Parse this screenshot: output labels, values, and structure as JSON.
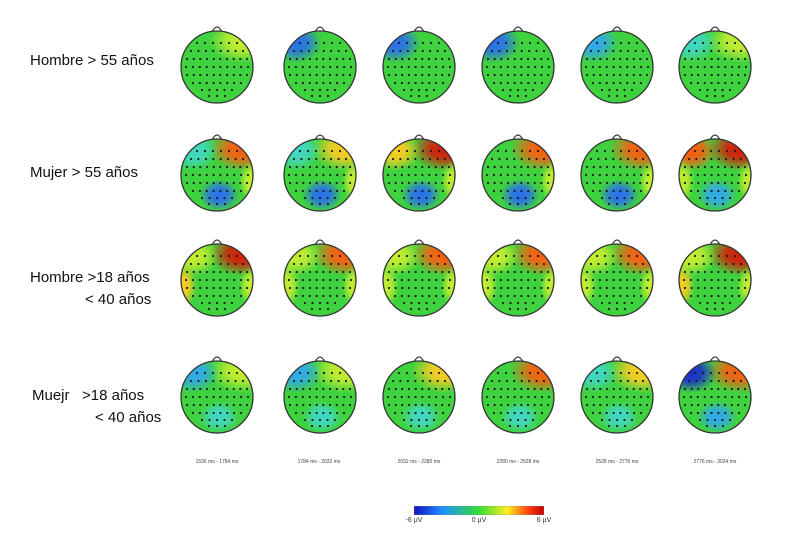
{
  "rows": [
    {
      "label": "Hombre > 55 años",
      "label2": ""
    },
    {
      "label": "Mujer > 55 años",
      "label2": ""
    },
    {
      "label": "Hombre >18 años",
      "label2": "< 40 años"
    },
    {
      "label": "Muejr   >18 años",
      "label2": "< 40 años"
    }
  ],
  "time_windows": [
    "1536 ms - 1784 ms",
    "1784 ms - 2032 ms",
    "2032 ms - 2280 ms",
    "2280 ms - 2528 ms",
    "2528 ms - 2776 ms",
    "2776 ms - 3024 ms"
  ],
  "colorbar": {
    "min_label": "-6 µV",
    "mid_label": "0 µV",
    "max_label": "6 µV",
    "colors": [
      "#1010c0",
      "#1e90ff",
      "#33dd33",
      "#ffee22",
      "#ff4010",
      "#c00000"
    ]
  },
  "maps": [
    [
      {
        "frontal_right": 0.15,
        "frontal_left": 0,
        "occipital": 0,
        "left": 0,
        "right": 0
      },
      {
        "frontal_right": 0,
        "frontal_left": -0.6,
        "occipital": 0,
        "left": 0,
        "right": 0
      },
      {
        "frontal_right": 0,
        "frontal_left": -0.8,
        "occipital": 0,
        "left": 0,
        "right": 0
      },
      {
        "frontal_right": 0,
        "frontal_left": -0.75,
        "occipital": 0,
        "left": 0,
        "right": 0
      },
      {
        "frontal_right": 0,
        "frontal_left": -0.5,
        "occipital": 0,
        "left": 0,
        "right": 0
      },
      {
        "frontal_right": 0.1,
        "frontal_left": -0.1,
        "occipital": 0,
        "left": 0,
        "right": 0
      }
    ],
    [
      {
        "frontal_right": 0.6,
        "frontal_left": -0.2,
        "occipital": -0.6,
        "left": 0,
        "right": 0.2
      },
      {
        "frontal_right": 0.4,
        "frontal_left": -0.3,
        "occipital": -0.8,
        "left": 0,
        "right": 0.1
      },
      {
        "frontal_right": 0.9,
        "frontal_left": 0.5,
        "occipital": -0.75,
        "left": 0,
        "right": 0.2
      },
      {
        "frontal_right": 0.6,
        "frontal_left": 0,
        "occipital": -0.7,
        "left": 0,
        "right": 0.2
      },
      {
        "frontal_right": 0.8,
        "frontal_left": 0,
        "occipital": -0.6,
        "left": 0,
        "right": 0.3
      },
      {
        "frontal_right": 0.95,
        "frontal_left": 0.6,
        "occipital": -0.55,
        "left": 0.2,
        "right": 0.3
      }
    ],
    [
      {
        "frontal_right": 0.85,
        "frontal_left": 0.2,
        "occipital": 0,
        "left": 0.45,
        "right": 0.2
      },
      {
        "frontal_right": 0.8,
        "frontal_left": 0.1,
        "occipital": 0,
        "left": 0.3,
        "right": 0.1
      },
      {
        "frontal_right": 0.8,
        "frontal_left": 0.1,
        "occipital": 0,
        "left": 0.35,
        "right": 0.1
      },
      {
        "frontal_right": 0.75,
        "frontal_left": 0.1,
        "occipital": 0,
        "left": 0.3,
        "right": 0.1
      },
      {
        "frontal_right": 0.8,
        "frontal_left": 0.1,
        "occipital": 0,
        "left": 0.35,
        "right": 0.1
      },
      {
        "frontal_right": 0.9,
        "frontal_left": 0.2,
        "occipital": 0,
        "left": 0.45,
        "right": 0.2
      }
    ],
    [
      {
        "frontal_right": 0.1,
        "frontal_left": -0.4,
        "occipital": -0.3,
        "left": 0,
        "right": 0
      },
      {
        "frontal_right": 0.3,
        "frontal_left": -0.45,
        "occipital": -0.3,
        "left": 0,
        "right": 0
      },
      {
        "frontal_right": 0.5,
        "frontal_left": 0,
        "occipital": -0.35,
        "left": 0,
        "right": 0
      },
      {
        "frontal_right": 0.6,
        "frontal_left": 0,
        "occipital": -0.35,
        "left": 0,
        "right": 0
      },
      {
        "frontal_right": 0.55,
        "frontal_left": -0.3,
        "occipital": -0.35,
        "left": 0,
        "right": 0
      },
      {
        "frontal_right": 0.7,
        "frontal_left": -0.9,
        "occipital": -0.4,
        "left": 0,
        "right": 0
      }
    ]
  ]
}
